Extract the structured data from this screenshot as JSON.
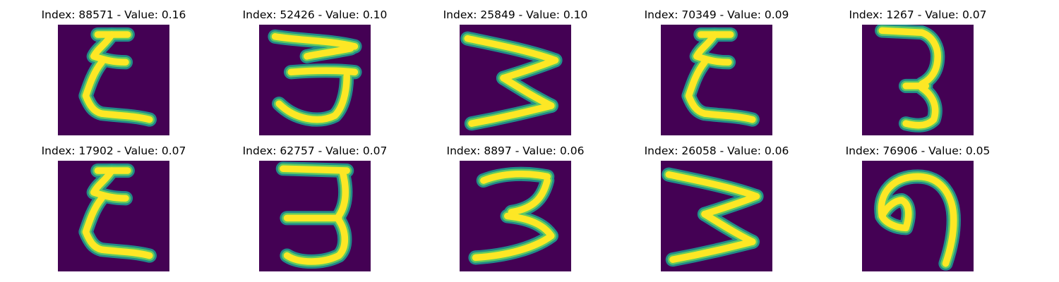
{
  "colors": {
    "background": "#440154",
    "stroke_edge": "#21918c",
    "stroke_mid": "#5ec962",
    "stroke_core": "#fde725"
  },
  "panels": [
    {
      "title": "Index: 88571 - Value: 0.16",
      "glyph": "epsilon-3"
    },
    {
      "title": "Index: 52426 - Value: 0.10",
      "glyph": "three-round"
    },
    {
      "title": "Index: 25849 - Value: 0.10",
      "glyph": "zigzag-3"
    },
    {
      "title": "Index: 70349 - Value: 0.09",
      "glyph": "epsilon-3"
    },
    {
      "title": "Index: 1267 - Value: 0.07",
      "glyph": "three-thin"
    },
    {
      "title": "Index: 17902 - Value: 0.07",
      "glyph": "epsilon-3"
    },
    {
      "title": "Index: 62757 - Value: 0.07",
      "glyph": "three-flat-top"
    },
    {
      "title": "Index: 8897 - Value: 0.06",
      "glyph": "three-bold"
    },
    {
      "title": "Index: 26058 - Value: 0.06",
      "glyph": "zigzag-3"
    },
    {
      "title": "Index: 76906 - Value: 0.05",
      "glyph": "nine-hook"
    }
  ]
}
